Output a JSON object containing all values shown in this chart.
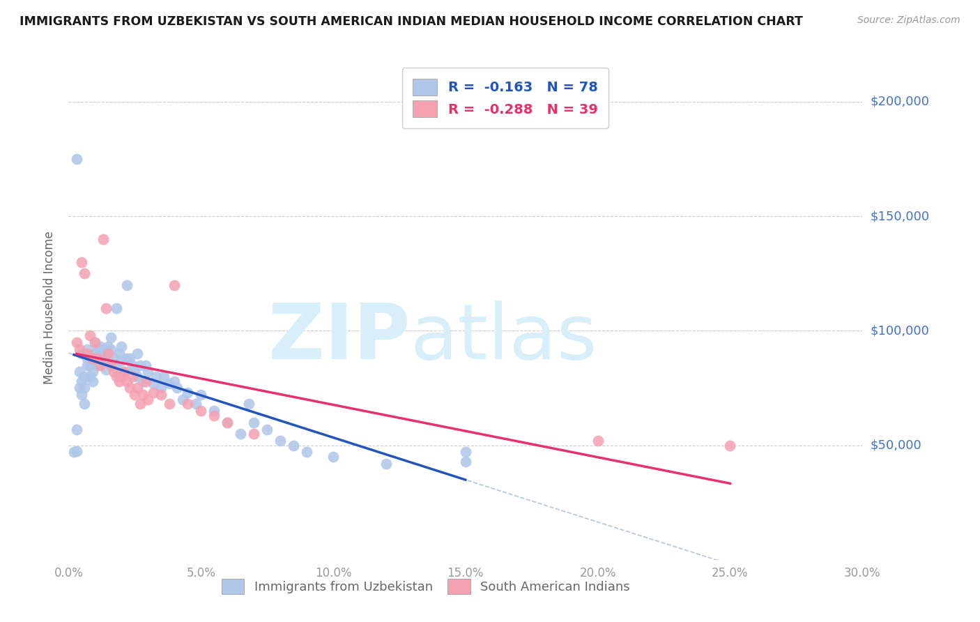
{
  "title": "IMMIGRANTS FROM UZBEKISTAN VS SOUTH AMERICAN INDIAN MEDIAN HOUSEHOLD INCOME CORRELATION CHART",
  "source": "Source: ZipAtlas.com",
  "ylabel": "Median Household Income",
  "series1_label": "Immigrants from Uzbekistan",
  "series2_label": "South American Indians",
  "series1_color": "#aec6e8",
  "series2_color": "#f4a0b0",
  "series1_line_color": "#2255bb",
  "series2_line_color": "#e8306a",
  "series1_R": -0.163,
  "series1_N": 78,
  "series2_R": -0.288,
  "series2_N": 39,
  "ytick_color": "#4472c4",
  "watermark_zip": "ZIP",
  "watermark_atlas": "atlas",
  "watermark_color": "#d8eef8",
  "background_color": "#ffffff",
  "xlim": [
    0.0,
    0.3
  ],
  "ylim": [
    0,
    220000
  ],
  "yticks": [
    0,
    50000,
    100000,
    150000,
    200000
  ],
  "xticks": [
    0.0,
    0.05,
    0.1,
    0.15,
    0.2,
    0.25,
    0.3
  ],
  "xtick_labels": [
    "0.0%",
    "5.0%",
    "10.0%",
    "15.0%",
    "20.0%",
    "25.0%",
    "30.0%"
  ],
  "series1_x": [
    0.002,
    0.003,
    0.003,
    0.004,
    0.004,
    0.005,
    0.005,
    0.005,
    0.006,
    0.006,
    0.006,
    0.007,
    0.007,
    0.007,
    0.008,
    0.008,
    0.008,
    0.009,
    0.009,
    0.009,
    0.01,
    0.01,
    0.01,
    0.011,
    0.011,
    0.012,
    0.012,
    0.013,
    0.013,
    0.014,
    0.014,
    0.015,
    0.015,
    0.016,
    0.016,
    0.017,
    0.018,
    0.018,
    0.019,
    0.02,
    0.02,
    0.021,
    0.022,
    0.022,
    0.023,
    0.024,
    0.025,
    0.026,
    0.026,
    0.027,
    0.028,
    0.029,
    0.03,
    0.032,
    0.033,
    0.035,
    0.036,
    0.038,
    0.04,
    0.041,
    0.043,
    0.045,
    0.048,
    0.05,
    0.055,
    0.06,
    0.065,
    0.068,
    0.07,
    0.075,
    0.08,
    0.085,
    0.09,
    0.1,
    0.12,
    0.15,
    0.003,
    0.15
  ],
  "series1_y": [
    47000,
    47500,
    57000,
    75000,
    82000,
    72000,
    78000,
    90000,
    68000,
    75000,
    80000,
    85000,
    88000,
    92000,
    80000,
    85000,
    88000,
    78000,
    82000,
    87000,
    88000,
    90000,
    95000,
    85000,
    92000,
    88000,
    93000,
    87000,
    92000,
    83000,
    90000,
    87000,
    93000,
    92000,
    97000,
    88000,
    85000,
    110000,
    90000,
    87000,
    93000,
    82000,
    88000,
    120000,
    88000,
    85000,
    83000,
    80000,
    90000,
    85000,
    78000,
    85000,
    82000,
    77000,
    80000,
    75000,
    80000,
    77000,
    78000,
    75000,
    70000,
    73000,
    68000,
    72000,
    65000,
    60000,
    55000,
    68000,
    60000,
    57000,
    52000,
    50000,
    47000,
    45000,
    42000,
    47000,
    175000,
    43000
  ],
  "series2_x": [
    0.003,
    0.004,
    0.005,
    0.006,
    0.007,
    0.008,
    0.009,
    0.01,
    0.011,
    0.012,
    0.013,
    0.014,
    0.015,
    0.016,
    0.017,
    0.018,
    0.019,
    0.02,
    0.021,
    0.022,
    0.023,
    0.024,
    0.025,
    0.026,
    0.027,
    0.028,
    0.029,
    0.03,
    0.032,
    0.035,
    0.038,
    0.04,
    0.045,
    0.05,
    0.055,
    0.06,
    0.07,
    0.2,
    0.25
  ],
  "series2_y": [
    95000,
    92000,
    130000,
    125000,
    90000,
    98000,
    88000,
    95000,
    88000,
    85000,
    140000,
    110000,
    90000,
    85000,
    82000,
    80000,
    78000,
    80000,
    82000,
    78000,
    75000,
    80000,
    72000,
    75000,
    68000,
    72000,
    78000,
    70000,
    73000,
    72000,
    68000,
    120000,
    68000,
    65000,
    63000,
    60000,
    55000,
    52000,
    50000
  ]
}
